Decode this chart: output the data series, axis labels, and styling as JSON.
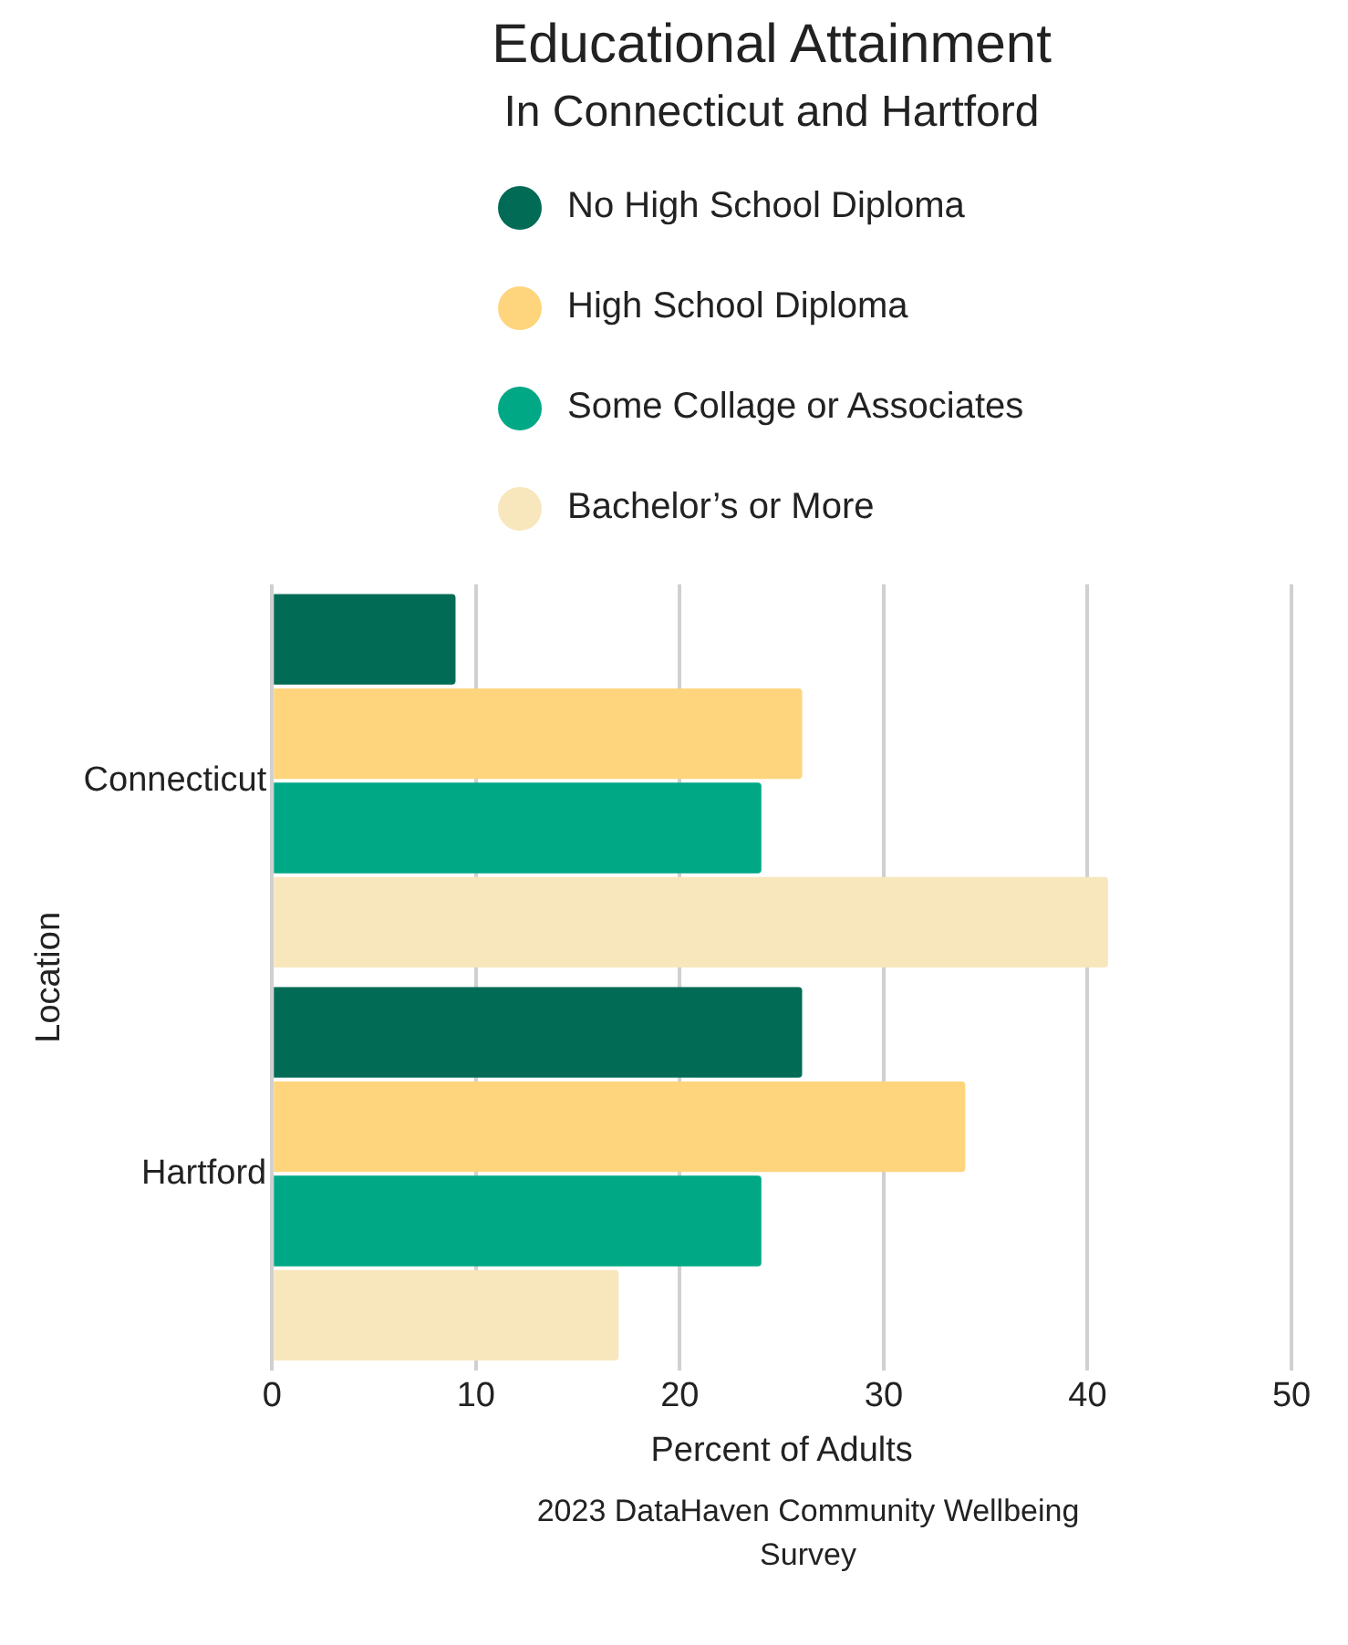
{
  "chart_data": {
    "type": "bar",
    "orientation": "horizontal",
    "title": "Educational Attainment",
    "subtitle": "In Connecticut and Hartford",
    "xlabel": "Percent of Adults",
    "ylabel": "Location",
    "categories": [
      "Connecticut",
      "Hartford"
    ],
    "series": [
      {
        "name": "No High School Diploma",
        "color": "#026b55",
        "values": [
          9,
          26
        ]
      },
      {
        "name": "High School Diploma",
        "color": "#fed57d",
        "values": [
          26,
          34
        ]
      },
      {
        "name": "Some Collage or Associates",
        "color": "#00a885",
        "values": [
          24,
          24
        ]
      },
      {
        "name": "Bachelor’s or More",
        "color": "#f8e7bd",
        "values": [
          41,
          17
        ]
      }
    ],
    "xlim": [
      0,
      50
    ],
    "xticks": [
      0,
      10,
      20,
      30,
      40,
      50
    ],
    "grid": "x",
    "legend": "top",
    "annotations": [
      "2023 DataHaven Community Wellbeing Survey"
    ]
  }
}
